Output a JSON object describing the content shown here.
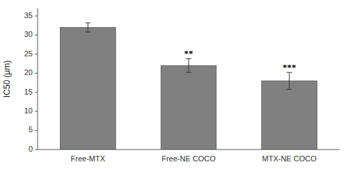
{
  "chart_data": {
    "type": "bar",
    "categories": [
      "Free-MTX",
      "Free-NE COCO",
      "MTX-NE COCO"
    ],
    "values": [
      32.0,
      22.0,
      18.0
    ],
    "errors": [
      1.2,
      1.8,
      2.2
    ],
    "significance": [
      null,
      "**",
      "***"
    ],
    "color": "#808080",
    "ylabel": "IC50 (µm)",
    "ylim": [
      0,
      37
    ],
    "yticks": [
      0,
      5,
      10,
      15,
      20,
      25,
      30,
      35
    ],
    "grid": false
  }
}
